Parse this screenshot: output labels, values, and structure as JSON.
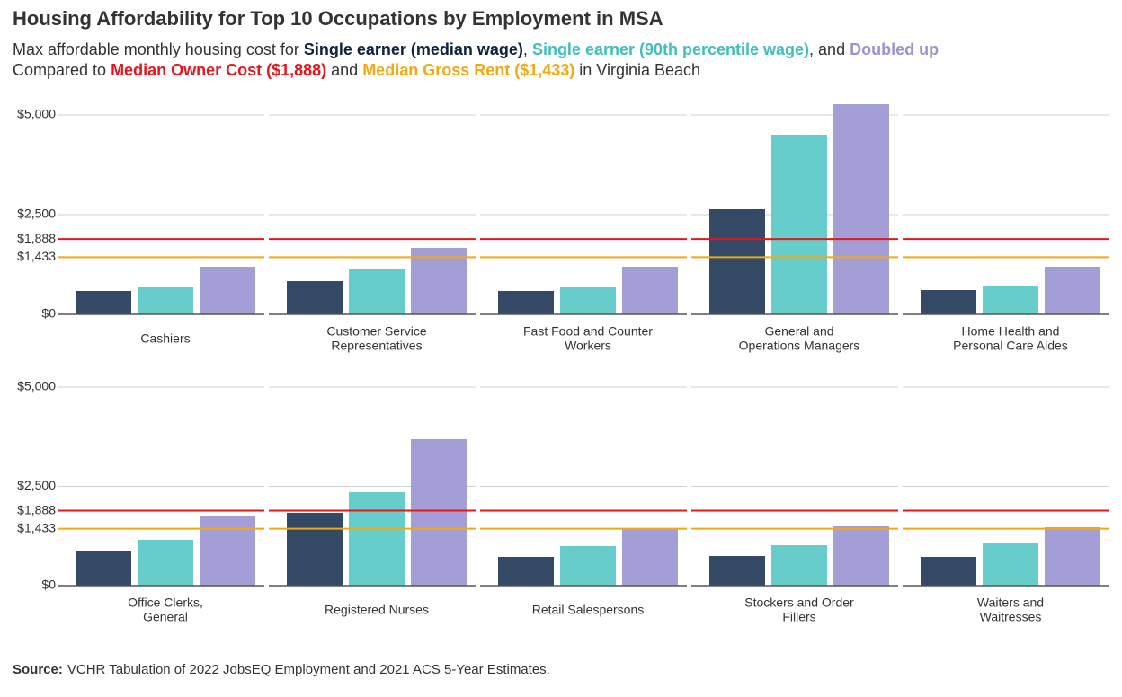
{
  "chart_data": {
    "type": "bar",
    "title": "Housing Affordability for Top 10 Occupations by Employment in MSA",
    "subtitle_lead": "Max affordable monthly housing cost for ",
    "subtitle_sep1": ", ",
    "subtitle_sep2": ", and ",
    "compare_lead": "Compared to ",
    "compare_sep": " and ",
    "compare_tail": " in Virginia Beach",
    "categories": [
      [
        "Cashiers"
      ],
      [
        "Customer Service",
        "Representatives"
      ],
      [
        "Fast Food and Counter",
        "Workers"
      ],
      [
        "General and",
        "Operations Managers"
      ],
      [
        "Home Health and",
        "Personal Care Aides"
      ],
      [
        "Office Clerks,",
        "General"
      ],
      [
        "Registered Nurses"
      ],
      [
        "Retail Salespersons"
      ],
      [
        "Stockers and Order",
        "Fillers"
      ],
      [
        "Waiters and",
        "Waitresses"
      ]
    ],
    "series": [
      {
        "name": "Single earner (median wage)",
        "color": "#334966",
        "label_color": "#0f2140",
        "values": [
          586,
          833,
          586,
          2635,
          608,
          860,
          1833,
          724,
          747,
          724
        ]
      },
      {
        "name": "Single earner (90th percentile wage)",
        "color": "#66cdca",
        "label_color": "#3fbfbb",
        "values": [
          676,
          1126,
          676,
          4505,
          721,
          1154,
          2353,
          995,
          1018,
          1086
        ]
      },
      {
        "name": "Doubled up",
        "color": "#a39fd6",
        "label_color": "#9b92d2",
        "values": [
          1194,
          1667,
          1194,
          5270,
          1194,
          1742,
          3688,
          1425,
          1493,
          1471
        ]
      }
    ],
    "reference_lines": [
      {
        "label": "Median Owner Cost ($1,888)",
        "value": 1888,
        "color": "#e8141b"
      },
      {
        "label": "Median Gross Rent ($1,433)",
        "value": 1433,
        "color": "#f5a70f"
      }
    ],
    "ylim": [
      0,
      5300
    ],
    "yticks": [
      {
        "value": 0,
        "label": "$0"
      },
      {
        "value": 1433,
        "label": "$1,433"
      },
      {
        "value": 1888,
        "label": "$1,888"
      },
      {
        "value": 2500,
        "label": "$2,500"
      },
      {
        "value": 5000,
        "label": "$5,000"
      }
    ],
    "grid": true,
    "source_label": "Source:",
    "source_text": "VCHR Tabulation of 2022 JobsEQ Employment and 2021 ACS 5-Year Estimates."
  }
}
